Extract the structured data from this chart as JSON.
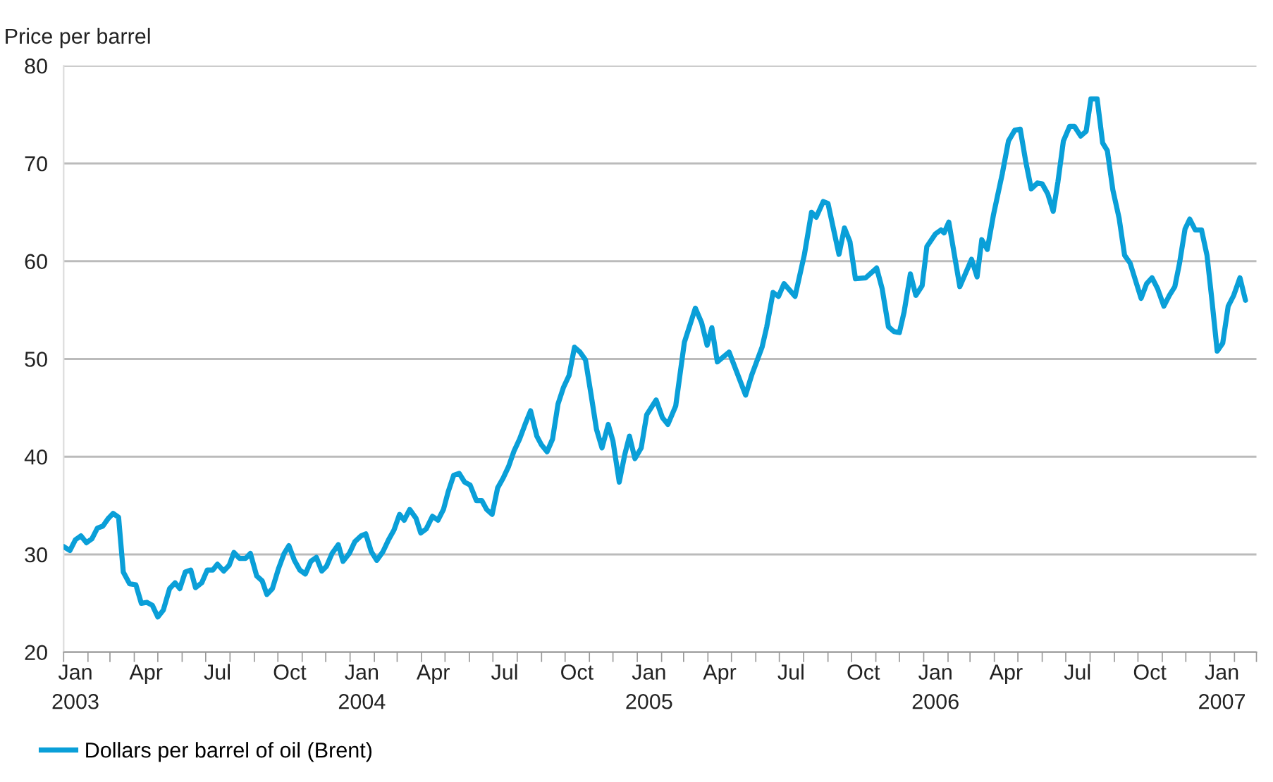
{
  "chart_data": {
    "type": "line",
    "ylabel": "Price per barrel",
    "x": [
      "2003-01-01",
      "2003-01-09",
      "2003-01-16",
      "2003-01-23",
      "2003-01-30",
      "2003-02-06",
      "2003-02-13",
      "2003-02-20",
      "2003-02-27",
      "2003-03-05",
      "2003-03-12",
      "2003-03-18",
      "2003-03-26",
      "2003-04-03",
      "2003-04-10",
      "2003-04-17",
      "2003-04-24",
      "2003-05-01",
      "2003-05-08",
      "2003-05-16",
      "2003-05-23",
      "2003-05-29",
      "2003-06-05",
      "2003-06-12",
      "2003-06-18",
      "2003-06-26",
      "2003-07-03",
      "2003-07-10",
      "2003-07-16",
      "2003-07-24",
      "2003-07-31",
      "2003-08-06",
      "2003-08-13",
      "2003-08-21",
      "2003-08-27",
      "2003-09-04",
      "2003-09-11",
      "2003-09-17",
      "2003-09-24",
      "2003-10-02",
      "2003-10-09",
      "2003-10-15",
      "2003-10-22",
      "2003-10-29",
      "2003-11-05",
      "2003-11-12",
      "2003-11-19",
      "2003-11-26",
      "2003-12-02",
      "2003-12-09",
      "2003-12-17",
      "2003-12-23",
      "2003-12-31",
      "2004-01-07",
      "2004-01-15",
      "2004-01-21",
      "2004-01-28",
      "2004-02-04",
      "2004-02-12",
      "2004-02-19",
      "2004-02-26",
      "2004-03-04",
      "2004-03-10",
      "2004-03-17",
      "2004-03-25",
      "2004-03-31",
      "2004-04-07",
      "2004-04-15",
      "2004-04-22",
      "2004-04-29",
      "2004-05-05",
      "2004-05-12",
      "2004-05-19",
      "2004-05-26",
      "2004-06-02",
      "2004-06-10",
      "2004-06-17",
      "2004-06-23",
      "2004-06-30",
      "2004-07-07",
      "2004-07-14",
      "2004-07-21",
      "2004-07-28",
      "2004-08-04",
      "2004-08-11",
      "2004-08-18",
      "2004-08-26",
      "2004-09-01",
      "2004-09-08",
      "2004-09-15",
      "2004-09-22",
      "2004-09-29",
      "2004-10-06",
      "2004-10-13",
      "2004-10-20",
      "2004-10-27",
      "2004-11-03",
      "2004-11-10",
      "2004-11-17",
      "2004-11-25",
      "2004-12-01",
      "2004-12-09",
      "2004-12-16",
      "2004-12-22",
      "2004-12-29",
      "2005-01-06",
      "2005-01-13",
      "2005-01-25",
      "2005-02-02",
      "2005-02-09",
      "2005-02-19",
      "2005-03-02",
      "2005-03-16",
      "2005-03-24",
      "2005-03-31",
      "2005-04-06",
      "2005-04-13",
      "2005-04-28",
      "2005-05-19",
      "2005-05-27",
      "2005-06-09",
      "2005-06-15",
      "2005-06-23",
      "2005-06-30",
      "2005-07-07",
      "2005-07-21",
      "2005-08-02",
      "2005-08-11",
      "2005-08-17",
      "2005-08-26",
      "2005-09-01",
      "2005-09-15",
      "2005-09-22",
      "2005-09-29",
      "2005-10-06",
      "2005-10-19",
      "2005-11-02",
      "2005-11-09",
      "2005-11-17",
      "2005-11-24",
      "2005-12-01",
      "2005-12-07",
      "2005-12-15",
      "2005-12-22",
      "2005-12-30",
      "2006-01-05",
      "2006-01-16",
      "2006-01-23",
      "2006-01-27",
      "2006-02-02",
      "2006-02-16",
      "2006-03-03",
      "2006-03-10",
      "2006-03-16",
      "2006-03-23",
      "2006-03-31",
      "2006-04-11",
      "2006-04-19",
      "2006-04-27",
      "2006-05-04",
      "2006-05-11",
      "2006-05-18",
      "2006-05-26",
      "2006-06-01",
      "2006-06-08",
      "2006-06-15",
      "2006-06-21",
      "2006-06-28",
      "2006-07-06",
      "2006-07-12",
      "2006-07-20",
      "2006-07-27",
      "2006-08-02",
      "2006-08-10",
      "2006-08-17",
      "2006-08-23",
      "2006-08-30",
      "2006-09-07",
      "2006-09-14",
      "2006-09-21",
      "2006-10-05",
      "2006-10-12",
      "2006-10-19",
      "2006-10-26",
      "2006-11-03",
      "2006-11-10",
      "2006-11-17",
      "2006-11-23",
      "2006-11-30",
      "2006-12-06",
      "2006-12-13",
      "2006-12-21",
      "2006-12-28",
      "2007-01-03",
      "2007-01-10",
      "2007-01-17",
      "2007-01-24",
      "2007-01-31",
      "2007-02-08",
      "2007-02-15"
    ],
    "series": [
      {
        "name": "Dollars per barrel of oil (Brent)",
        "color": "#0a9fd8",
        "values": [
          30.8,
          30.4,
          31.5,
          31.9,
          31.2,
          31.6,
          32.7,
          32.9,
          33.7,
          34.2,
          33.8,
          28.2,
          27.0,
          26.9,
          25.0,
          25.1,
          24.8,
          23.6,
          24.3,
          26.5,
          27.1,
          26.5,
          28.2,
          28.4,
          26.6,
          27.1,
          28.4,
          28.4,
          29.0,
          28.3,
          28.9,
          30.2,
          29.6,
          29.6,
          30.1,
          27.8,
          27.3,
          25.9,
          26.5,
          28.6,
          30.1,
          30.9,
          29.4,
          28.4,
          28.0,
          29.3,
          29.7,
          28.3,
          28.8,
          30.1,
          31.0,
          29.3,
          30.1,
          31.3,
          31.9,
          32.1,
          30.3,
          29.4,
          30.3,
          31.5,
          32.5,
          34.1,
          33.5,
          34.6,
          33.7,
          32.2,
          32.6,
          33.9,
          33.5,
          34.6,
          36.4,
          38.1,
          38.3,
          37.4,
          37.1,
          35.5,
          35.5,
          34.6,
          34.1,
          36.8,
          37.8,
          39.0,
          40.6,
          41.8,
          43.3,
          44.7,
          42.1,
          41.2,
          40.5,
          41.8,
          45.4,
          47.1,
          48.3,
          51.2,
          50.7,
          49.9,
          46.4,
          42.8,
          40.9,
          43.3,
          41.6,
          37.4,
          40.2,
          42.1,
          39.8,
          40.9,
          44.3,
          45.8,
          44.0,
          43.3,
          45.2,
          51.7,
          55.2,
          53.7,
          51.4,
          53.2,
          49.7,
          50.7,
          46.3,
          48.4,
          51.2,
          53.3,
          56.8,
          56.4,
          57.7,
          56.4,
          60.7,
          65.0,
          64.5,
          66.1,
          65.9,
          60.7,
          63.4,
          62.0,
          58.2,
          58.3,
          59.3,
          57.2,
          53.3,
          52.8,
          52.7,
          54.8,
          58.7,
          56.5,
          57.5,
          61.5,
          62.8,
          63.2,
          62.9,
          64.0,
          57.4,
          60.2,
          58.4,
          62.2,
          61.2,
          64.8,
          68.9,
          72.3,
          73.4,
          73.5,
          70.2,
          67.4,
          68.0,
          67.9,
          66.9,
          65.1,
          68.1,
          72.3,
          73.8,
          73.8,
          72.8,
          73.3,
          76.6,
          76.6,
          72.1,
          71.3,
          67.3,
          64.4,
          60.6,
          59.8,
          56.2,
          57.7,
          58.3,
          57.2,
          55.4,
          56.5,
          57.4,
          59.8,
          63.3,
          64.3,
          63.2,
          63.2,
          60.6,
          56.2,
          50.8,
          51.6,
          55.4,
          56.5,
          58.3,
          56.0
        ]
      }
    ],
    "xlim": [
      "2003-01-01",
      "2007-03-01"
    ],
    "xticks": [
      {
        "value": "2003-01-01",
        "label": null
      },
      {
        "value": "2003-02-01",
        "label": null
      },
      {
        "value": "2003-03-01",
        "label": null
      },
      {
        "value": "2003-04-01",
        "label": null
      },
      {
        "value": "2003-05-01",
        "label": null
      },
      {
        "value": "2003-06-01",
        "label": null
      },
      {
        "value": "2003-07-01",
        "label": null
      },
      {
        "value": "2003-08-01",
        "label": null
      },
      {
        "value": "2003-09-01",
        "label": null
      },
      {
        "value": "2003-10-01",
        "label": null
      },
      {
        "value": "2003-11-01",
        "label": null
      },
      {
        "value": "2003-12-01",
        "label": null
      },
      {
        "value": "2004-01-01",
        "label": null
      },
      {
        "value": "2004-02-01",
        "label": null
      },
      {
        "value": "2004-03-01",
        "label": null
      },
      {
        "value": "2004-04-01",
        "label": null
      },
      {
        "value": "2004-05-01",
        "label": null
      },
      {
        "value": "2004-06-01",
        "label": null
      },
      {
        "value": "2004-07-01",
        "label": null
      },
      {
        "value": "2004-08-01",
        "label": null
      },
      {
        "value": "2004-09-01",
        "label": null
      },
      {
        "value": "2004-10-01",
        "label": null
      },
      {
        "value": "2004-11-01",
        "label": null
      },
      {
        "value": "2004-12-01",
        "label": null
      },
      {
        "value": "2005-01-01",
        "label": null
      },
      {
        "value": "2005-02-01",
        "label": null
      },
      {
        "value": "2005-03-01",
        "label": null
      },
      {
        "value": "2005-04-01",
        "label": null
      },
      {
        "value": "2005-05-01",
        "label": null
      },
      {
        "value": "2005-06-01",
        "label": null
      },
      {
        "value": "2005-07-01",
        "label": null
      },
      {
        "value": "2005-08-01",
        "label": null
      },
      {
        "value": "2005-09-01",
        "label": null
      },
      {
        "value": "2005-10-01",
        "label": null
      },
      {
        "value": "2005-11-01",
        "label": null
      },
      {
        "value": "2005-12-01",
        "label": null
      },
      {
        "value": "2006-01-01",
        "label": null
      },
      {
        "value": "2006-02-01",
        "label": null
      },
      {
        "value": "2006-03-01",
        "label": null
      },
      {
        "value": "2006-04-01",
        "label": null
      },
      {
        "value": "2006-05-01",
        "label": null
      },
      {
        "value": "2006-06-01",
        "label": null
      },
      {
        "value": "2006-07-01",
        "label": null
      },
      {
        "value": "2006-08-01",
        "label": null
      },
      {
        "value": "2006-09-01",
        "label": null
      },
      {
        "value": "2006-10-01",
        "label": null
      },
      {
        "value": "2006-11-01",
        "label": null
      },
      {
        "value": "2006-12-01",
        "label": null
      },
      {
        "value": "2007-01-01",
        "label": null
      },
      {
        "value": "2007-02-01",
        "label": null
      },
      {
        "value": "2007-03-01",
        "label": null
      },
      {
        "value": "2003-01-16",
        "label": "Jan\n2003"
      },
      {
        "value": "2003-04-16",
        "label": "Apr"
      },
      {
        "value": "2003-07-16",
        "label": "Jul"
      },
      {
        "value": "2003-10-16",
        "label": "Oct"
      },
      {
        "value": "2004-01-16",
        "label": "Jan\n2004"
      },
      {
        "value": "2004-04-16",
        "label": "Apr"
      },
      {
        "value": "2004-07-16",
        "label": "Jul"
      },
      {
        "value": "2004-10-16",
        "label": "Oct"
      },
      {
        "value": "2005-01-16",
        "label": "Jan\n2005"
      },
      {
        "value": "2005-04-16",
        "label": "Apr"
      },
      {
        "value": "2005-07-16",
        "label": "Jul"
      },
      {
        "value": "2005-10-16",
        "label": "Oct"
      },
      {
        "value": "2006-01-16",
        "label": "Jan\n2006"
      },
      {
        "value": "2006-04-16",
        "label": "Apr"
      },
      {
        "value": "2006-07-16",
        "label": "Jul"
      },
      {
        "value": "2006-10-16",
        "label": "Oct"
      },
      {
        "value": "2007-01-16",
        "label": "Jan\n2007"
      }
    ],
    "ylim": [
      20,
      80
    ],
    "yticks": [
      20,
      30,
      40,
      50,
      60,
      70,
      80
    ],
    "grid": "y",
    "legend": "bottom left",
    "marker": "none",
    "line_style": "solid"
  }
}
